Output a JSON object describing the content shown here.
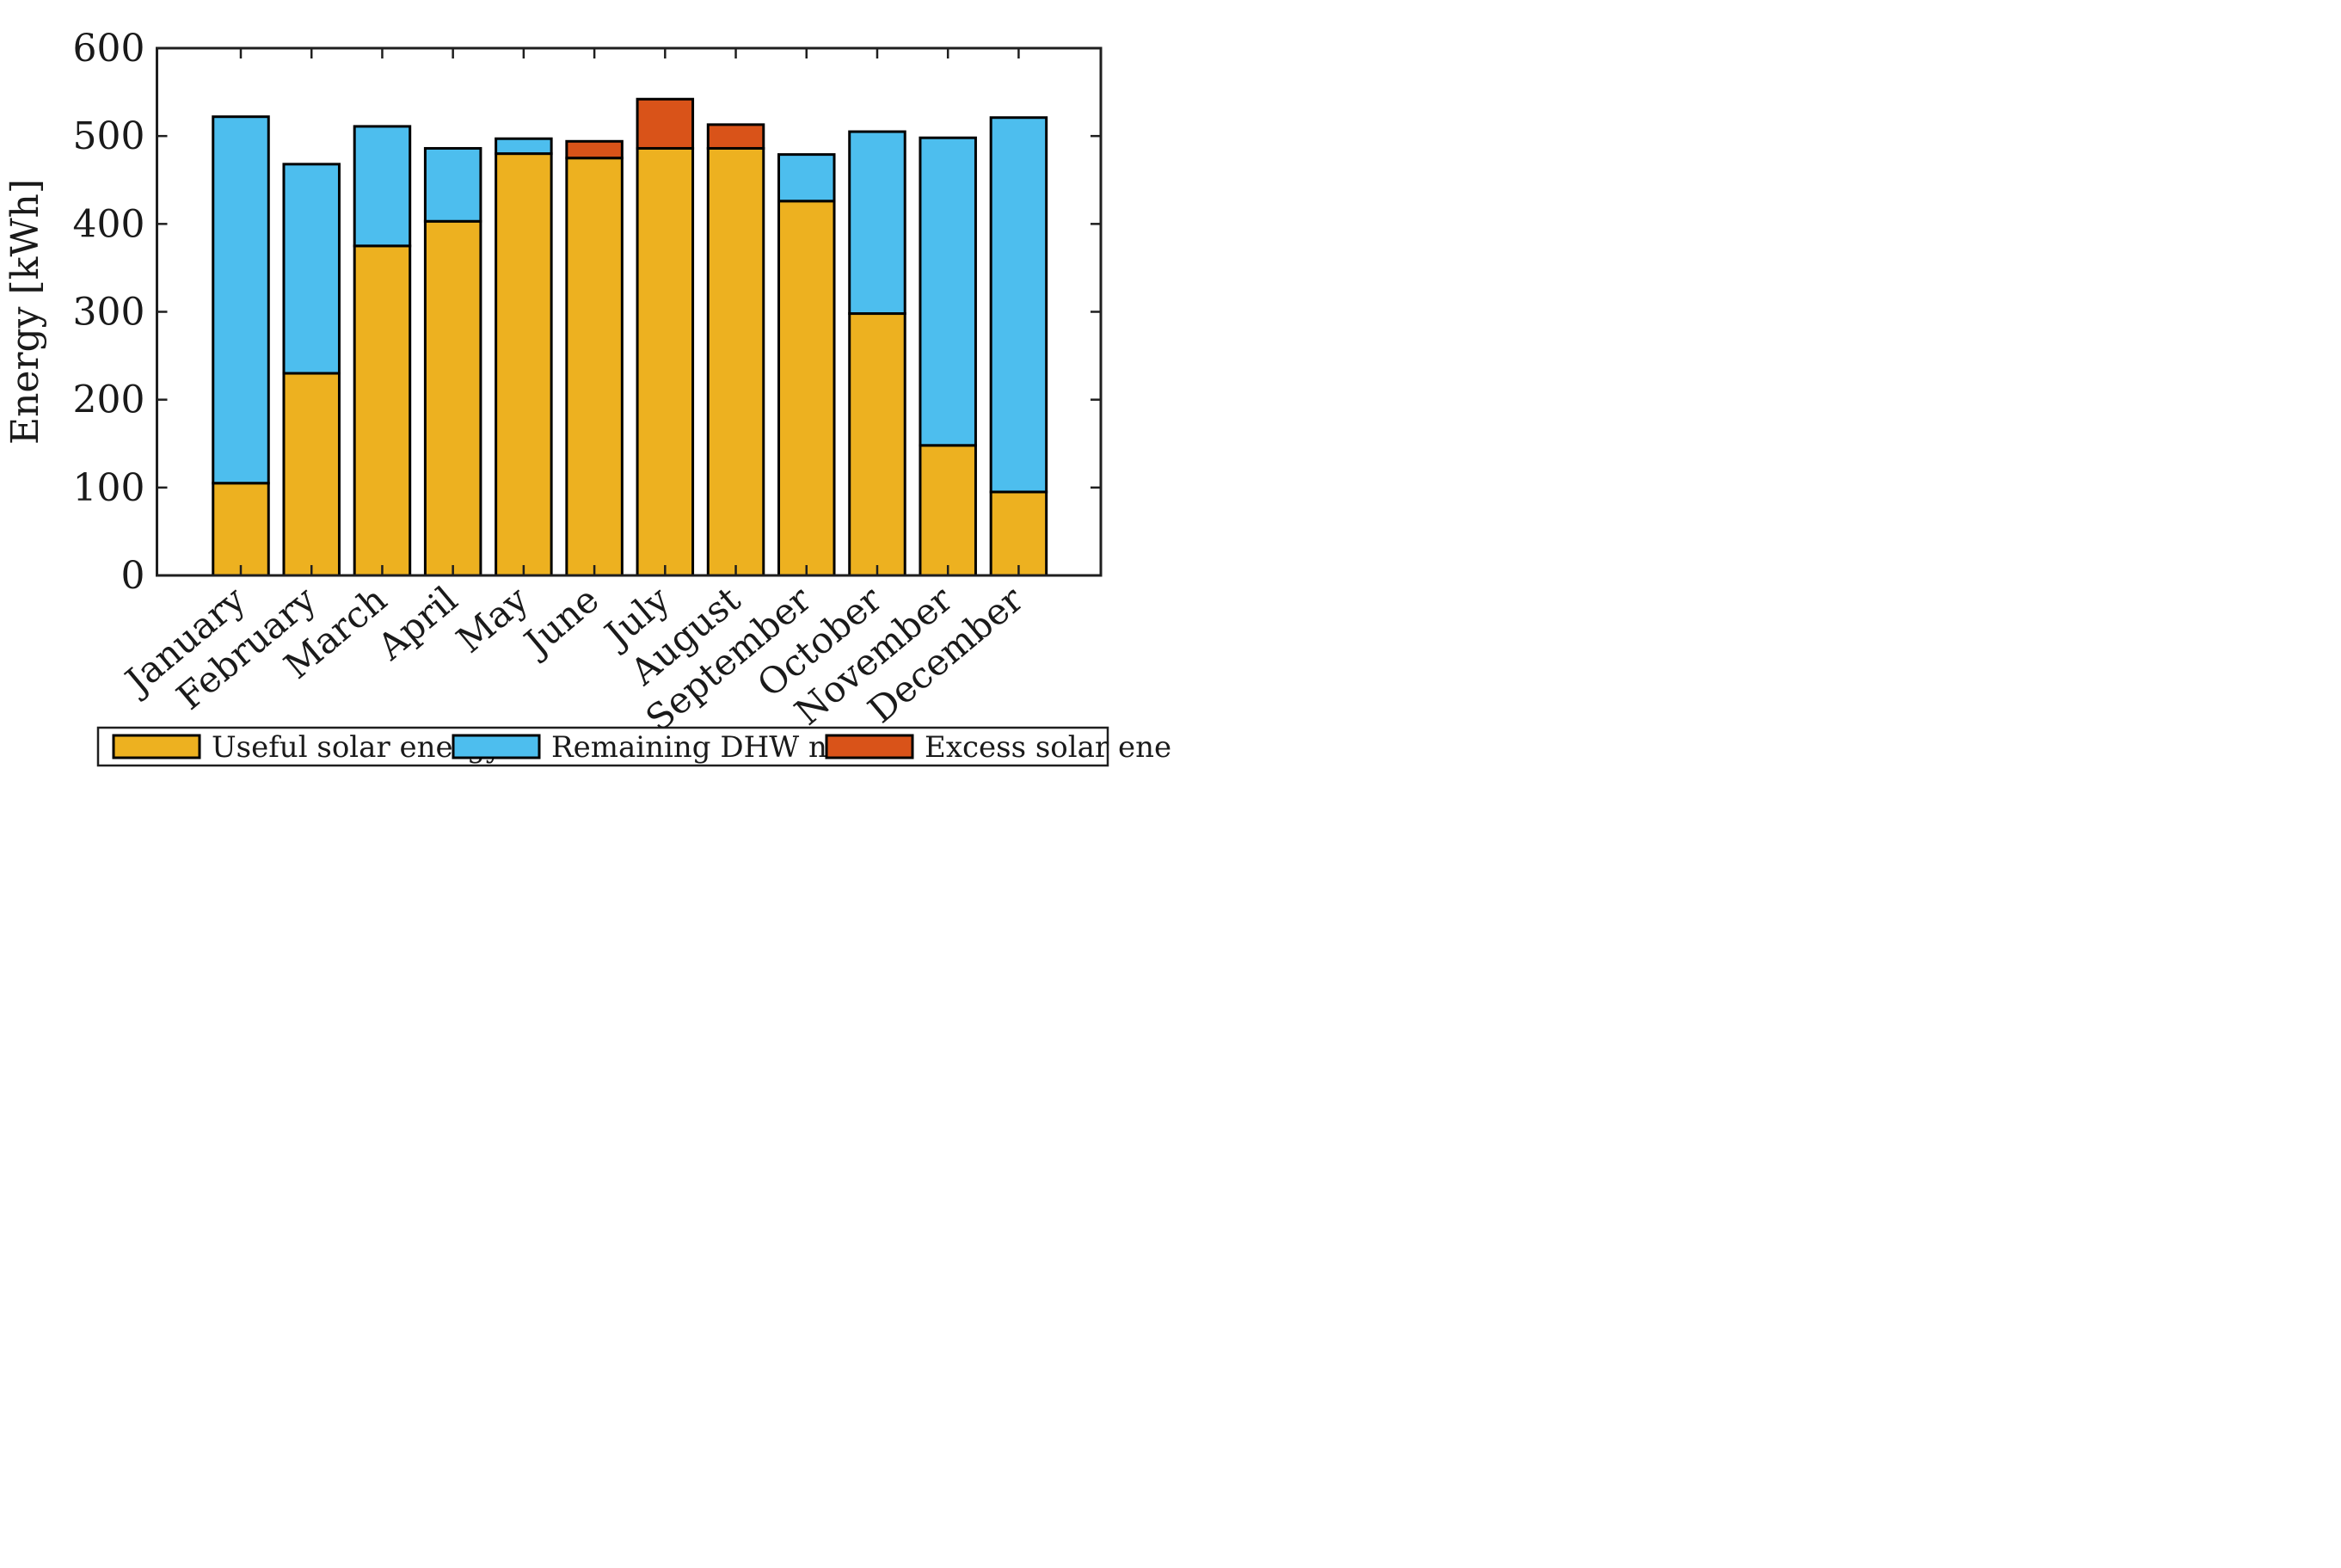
{
  "figure": {
    "background": "#ffffff",
    "axis_color": "#1f1f1f",
    "bar_edge_color": "#000000",
    "text_color": "#1a1a1a"
  },
  "y_axis": {
    "label": "Energy [kWh]",
    "ticks": [
      0,
      100,
      200,
      300,
      400,
      500,
      600
    ],
    "min": 0,
    "max": 600
  },
  "legend": {
    "items": [
      {
        "label": "Useful solar energy",
        "color": "#EDB120"
      },
      {
        "label": "Remaining DHW need",
        "color": "#4DBEEE"
      },
      {
        "label": "Excess solar energy",
        "color": "#D95319"
      }
    ]
  },
  "chart_data": {
    "type": "bar",
    "stacked": true,
    "title": "",
    "xlabel": "",
    "ylabel": "Energy [kWh]",
    "ylim": [
      0,
      600
    ],
    "ytick_step": 100,
    "grid": false,
    "box": true,
    "tick_direction": "in",
    "legend_position": "bottom",
    "x_tick_label_rotation": -40,
    "categories": [
      "January",
      "February",
      "March",
      "April",
      "May",
      "June",
      "July",
      "August",
      "September",
      "October",
      "November",
      "December"
    ],
    "series": [
      {
        "name": "Useful solar energy",
        "color": "#EDB120",
        "values": [
          105,
          230,
          375,
          403,
          480,
          475,
          486,
          486,
          426,
          298,
          148,
          95
        ]
      },
      {
        "name": "Remaining DHW need",
        "color": "#4DBEEE",
        "values": [
          417,
          238,
          136,
          83,
          17,
          0,
          0,
          0,
          53,
          207,
          350,
          426
        ]
      },
      {
        "name": "Excess solar energy",
        "color": "#D95319",
        "values": [
          0,
          0,
          0,
          0,
          0,
          19,
          56,
          27,
          0,
          0,
          0,
          0
        ]
      }
    ],
    "totals": [
      522,
      468,
      511,
      486,
      497,
      494,
      542,
      513,
      479,
      505,
      498,
      521
    ]
  }
}
